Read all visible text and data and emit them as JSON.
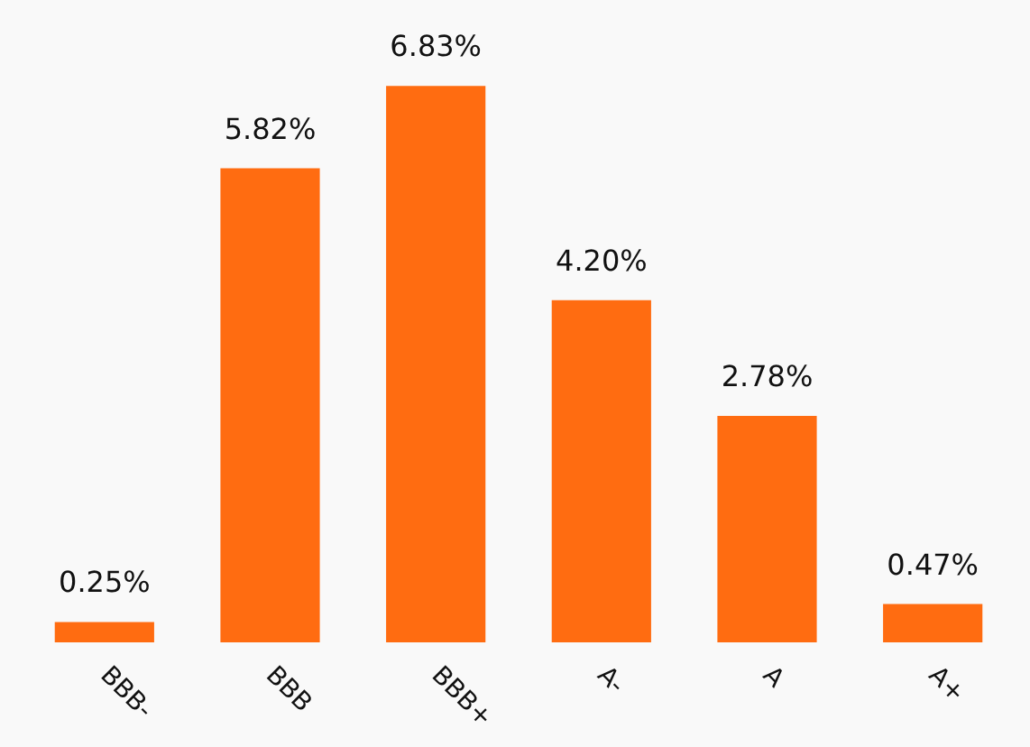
{
  "chart_data": {
    "type": "bar",
    "categories": [
      "BBB-",
      "BBB",
      "BBB+",
      "A-",
      "A",
      "A+"
    ],
    "values": [
      0.25,
      5.82,
      6.83,
      4.2,
      2.78,
      0.47
    ],
    "value_labels": [
      "0.25%",
      "5.82%",
      "6.83%",
      "4.20%",
      "2.78%",
      "0.47%"
    ],
    "color": "#ff6c11"
  }
}
